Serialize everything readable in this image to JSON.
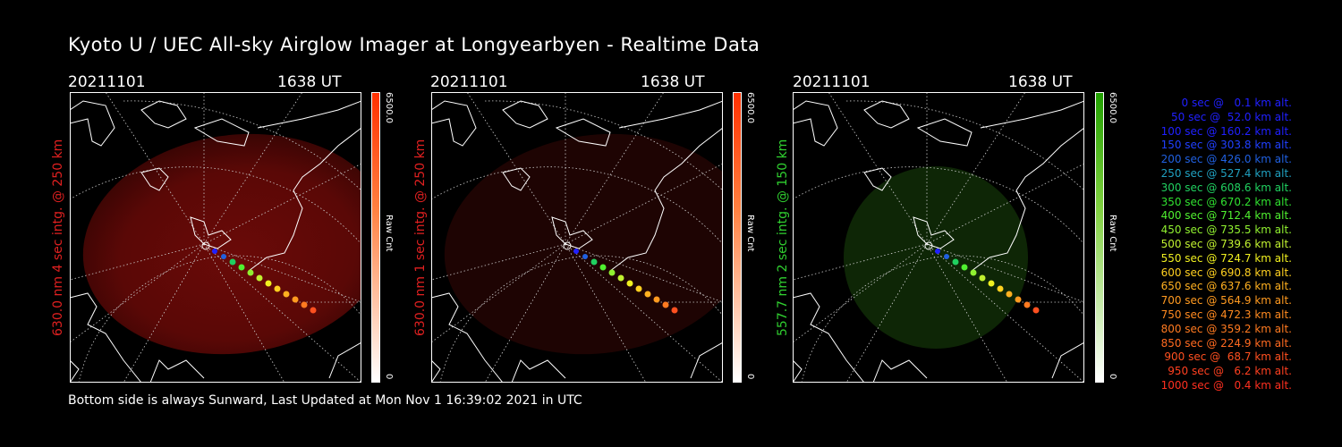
{
  "title": "Kyoto U / UEC All-sky Airglow Imager at Longyearbyen - Realtime Data",
  "footer": "Bottom side is always Sunward, Last Updated at Mon Nov  1 16:39:02 2021 in UTC",
  "panels": [
    {
      "date": "20211101",
      "time": "1638 UT",
      "side_label": "630.0 nm 4 sec intg. @ 250 km",
      "side_color": "#e02020",
      "cbar_max": "6500.0",
      "cbar_min": "0",
      "cbar_unit": "Raw Cnt",
      "cbar_color": "#ff5a10"
    },
    {
      "date": "20211101",
      "time": "1638 UT",
      "side_label": "630.0 nm 1 sec intg. @ 250 km",
      "side_color": "#e02020",
      "cbar_max": "6500.0",
      "cbar_min": "0",
      "cbar_unit": "Raw Cnt",
      "cbar_color": "#ff5a10"
    },
    {
      "date": "20211101",
      "time": "1638 UT",
      "side_label": "557.7 nm 2 sec intg. @ 150 km",
      "side_color": "#30d030",
      "cbar_max": "6500.0",
      "cbar_min": "0",
      "cbar_unit": "Raw Cnt",
      "cbar_color": "#30c030"
    }
  ],
  "legend": [
    {
      "text": "0 sec @   0.1 km alt.",
      "color": "#2020ff"
    },
    {
      "text": "50 sec @  52.0 km alt.",
      "color": "#2020ff"
    },
    {
      "text": "100 sec @ 160.2 km alt.",
      "color": "#2020ff"
    },
    {
      "text": "150 sec @ 303.8 km alt.",
      "color": "#2040ff"
    },
    {
      "text": "200 sec @ 426.0 km alt.",
      "color": "#2060e0"
    },
    {
      "text": "250 sec @ 527.4 km alt.",
      "color": "#20a0c0"
    },
    {
      "text": "300 sec @ 608.6 km alt.",
      "color": "#20d060"
    },
    {
      "text": "350 sec @ 670.2 km alt.",
      "color": "#30e030"
    },
    {
      "text": "400 sec @ 712.4 km alt.",
      "color": "#50f030"
    },
    {
      "text": "450 sec @ 735.5 km alt.",
      "color": "#90f030"
    },
    {
      "text": "500 sec @ 739.6 km alt.",
      "color": "#c0f030"
    },
    {
      "text": "550 sec @ 724.7 km alt.",
      "color": "#f0f020"
    },
    {
      "text": "600 sec @ 690.8 km alt.",
      "color": "#ffd020"
    },
    {
      "text": "650 sec @ 637.6 km alt.",
      "color": "#ffb020"
    },
    {
      "text": "700 sec @ 564.9 km alt.",
      "color": "#ff9a20"
    },
    {
      "text": "750 sec @ 472.3 km alt.",
      "color": "#ff8a20"
    },
    {
      "text": "800 sec @ 359.2 km alt.",
      "color": "#ff7a20"
    },
    {
      "text": "850 sec @ 224.9 km alt.",
      "color": "#ff6a20"
    },
    {
      "text": "900 sec @  68.7 km alt.",
      "color": "#ff5020"
    },
    {
      "text": "950 sec @   6.2 km alt.",
      "color": "#ff4020"
    },
    {
      "text": "1000 sec @   0.4 km alt.",
      "color": "#ff3020"
    }
  ]
}
